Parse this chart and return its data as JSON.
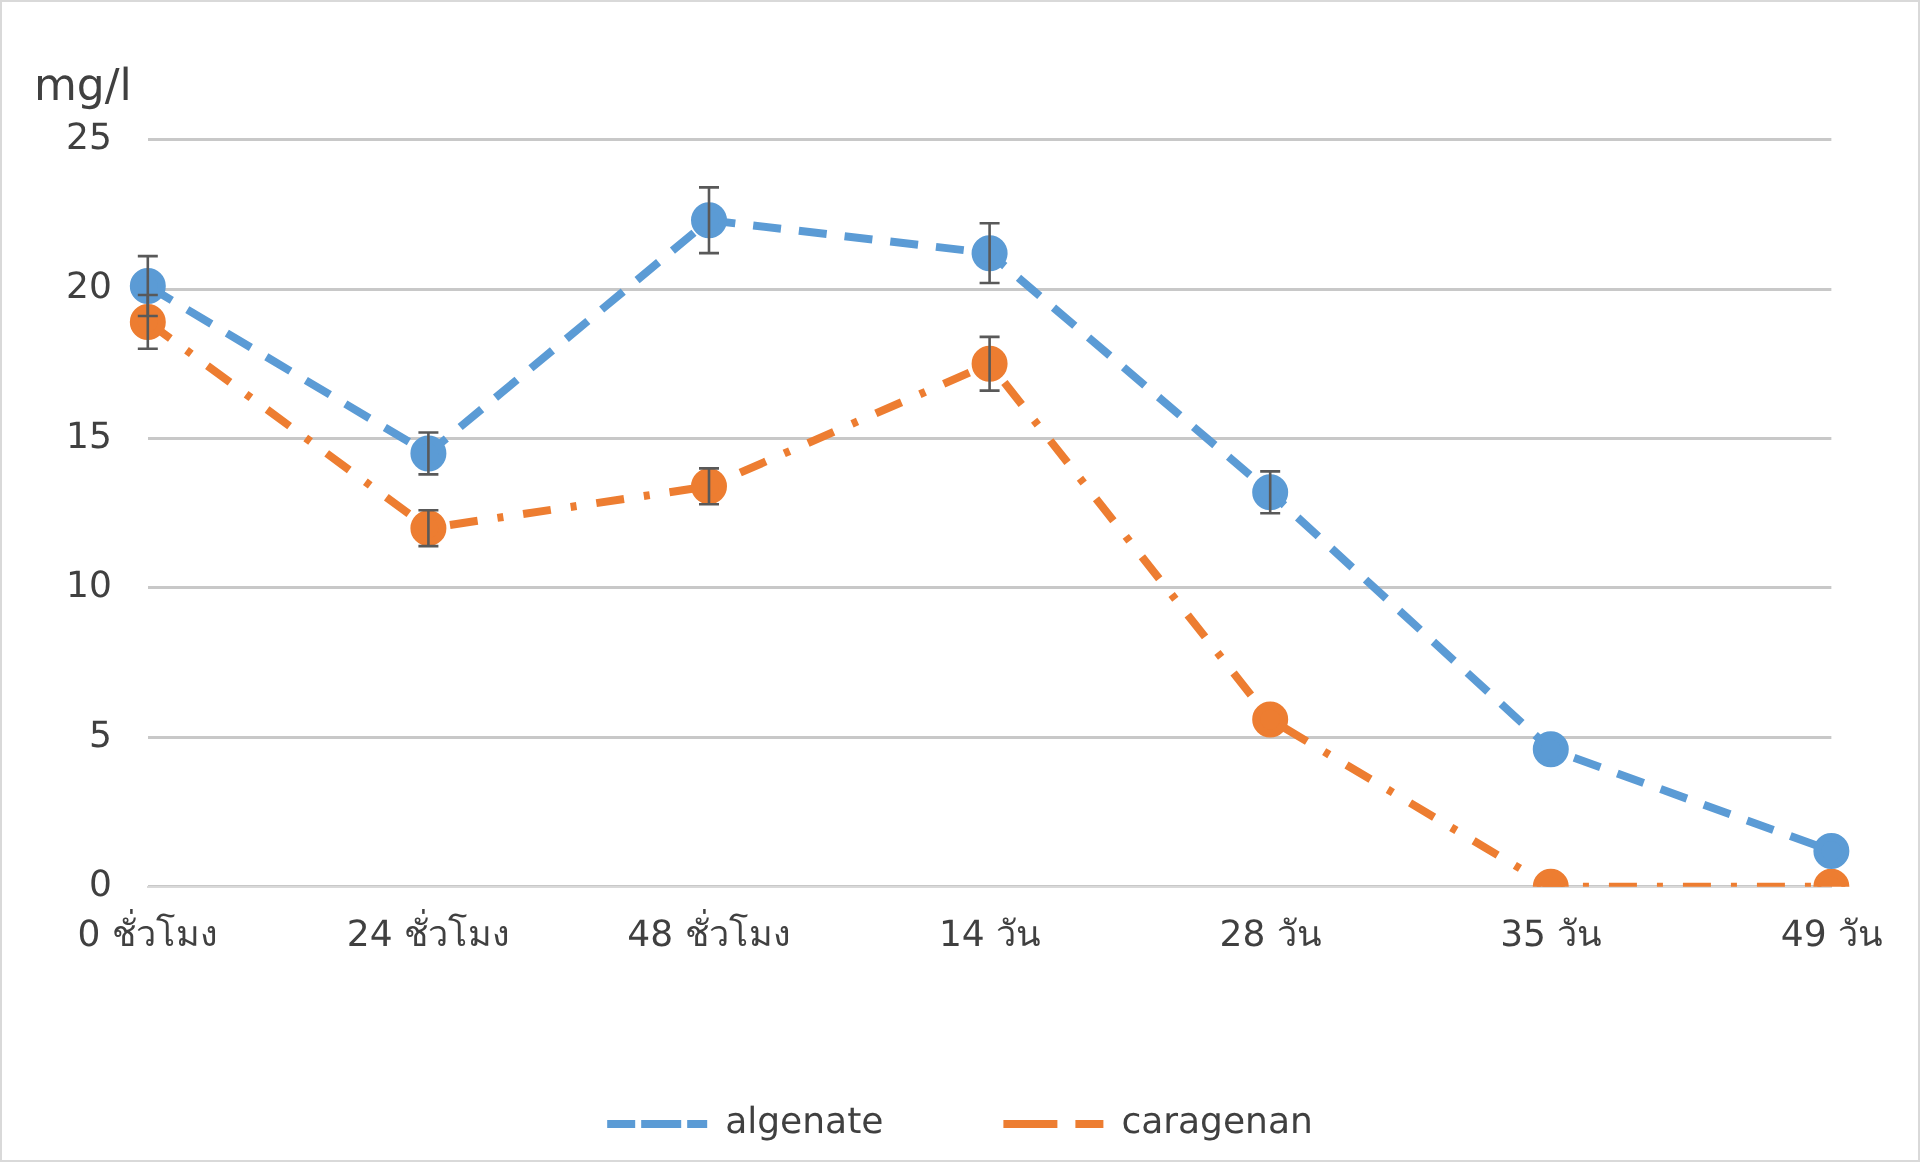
{
  "chart_data": {
    "type": "line",
    "ylabel": "mg/l",
    "categories": [
      "0 ชั่วโมง",
      "24 ชั่วโมง",
      "48 ชั่วโมง",
      "14 วัน",
      "28 วัน",
      "35 วัน",
      "49 วัน"
    ],
    "series": [
      {
        "name": "algenate",
        "color": "#5b9bd5",
        "line_style": "dashed",
        "values": [
          20.1,
          14.5,
          22.3,
          21.2,
          13.2,
          4.6,
          1.2
        ],
        "errors": [
          1.0,
          0.7,
          1.1,
          1.0,
          0.7,
          null,
          null
        ]
      },
      {
        "name": "caragenan",
        "color": "#ed7d31",
        "line_style": "dashdot",
        "values": [
          18.9,
          12.0,
          13.4,
          17.5,
          5.6,
          0,
          0
        ],
        "errors": [
          0.9,
          0.6,
          0.6,
          0.9,
          null,
          null,
          null
        ]
      }
    ],
    "ylim": [
      0,
      25
    ],
    "yticks": [
      0,
      5,
      10,
      15,
      20,
      25
    ],
    "grid": "y",
    "legend": "bottom",
    "marker": "circle"
  }
}
